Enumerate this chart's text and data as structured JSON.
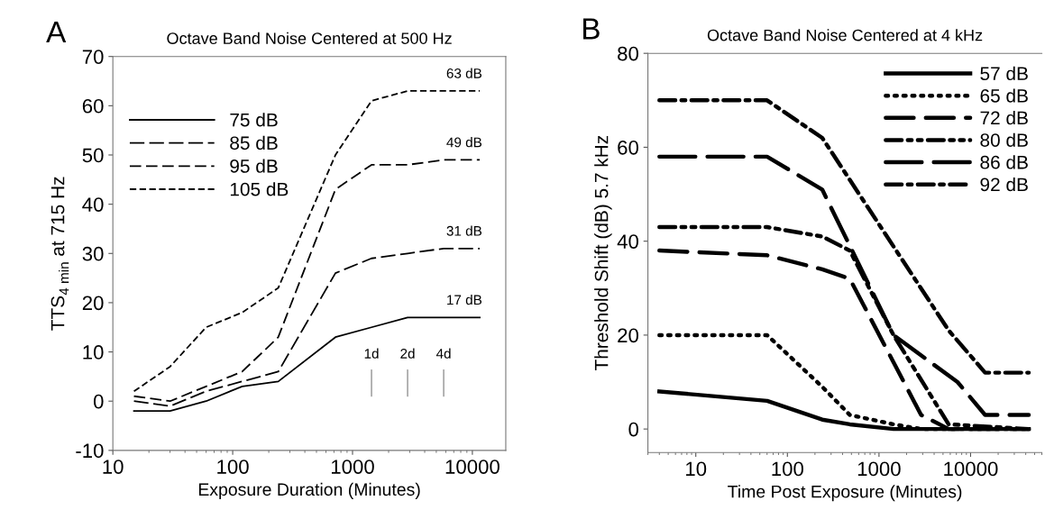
{
  "chart_data": [
    {
      "type": "line",
      "title": "Octave Band Noise Centered at 500 Hz",
      "xlabel": "Exposure Duration (Minutes)",
      "ylabel": "TTS$_{4 min}$ at 715 Hz",
      "x": [
        15,
        30,
        60,
        120,
        240,
        720,
        1440,
        2880,
        5760,
        11520
      ],
      "series": [
        {
          "name": "75 dB",
          "color": "#000000",
          "line_style": "solid",
          "values": [
            -2,
            -2,
            0,
            3,
            4,
            13,
            15,
            17,
            17,
            17
          ],
          "value_labels": [
            null,
            null,
            null,
            null,
            null,
            null,
            null,
            null,
            null,
            "17 dB"
          ]
        },
        {
          "name": "85 dB",
          "color": "#000000",
          "line_style": "long dashed",
          "values": [
            0,
            -1,
            2,
            4,
            6,
            26,
            29,
            30,
            31,
            31
          ],
          "value_labels": [
            null,
            null,
            null,
            null,
            null,
            null,
            null,
            null,
            null,
            "31 dB"
          ]
        },
        {
          "name": "95 dB",
          "color": "#000000",
          "line_style": "dashed",
          "values": [
            1,
            0,
            3,
            6,
            13,
            43,
            48,
            48,
            49,
            49
          ],
          "value_labels": [
            null,
            null,
            null,
            null,
            null,
            null,
            null,
            null,
            null,
            "49 dB"
          ]
        },
        {
          "name": "105 dB",
          "color": "#000000",
          "line_style": "short dashed",
          "values": [
            2,
            7,
            15,
            18,
            23,
            50,
            61,
            63,
            63,
            63
          ],
          "value_labels": [
            null,
            null,
            null,
            null,
            null,
            null,
            null,
            null,
            null,
            "63 dB"
          ]
        }
      ],
      "log": "x",
      "xlim": [
        10,
        19000
      ],
      "xticks": [
        10,
        100,
        1000,
        10000
      ],
      "ylim": [
        -10,
        70
      ],
      "yticks": [
        -10,
        0,
        10,
        20,
        30,
        40,
        50,
        60,
        70
      ],
      "legend": "upper left",
      "grid": false,
      "annotations": [
        "A",
        "1d",
        "2d",
        "4d"
      ]
    },
    {
      "type": "line",
      "title": "Octave Band Noise Centered at 4 kHz",
      "xlabel": "Time Post Exposure (Minutes)",
      "ylabel": "Threshold Shift (dB) 5.7 kHz",
      "series": [
        {
          "name": "57 dB",
          "color": "#000000",
          "line_style": "solid",
          "x": [
            4,
            60,
            240,
            480,
            1440,
            43200
          ],
          "values": [
            8,
            6,
            2,
            1,
            0,
            0
          ]
        },
        {
          "name": "65 dB",
          "color": "#000000",
          "line_style": "dotted",
          "x": [
            4,
            60,
            240,
            480,
            1440,
            2880,
            43200
          ],
          "values": [
            20,
            20,
            9,
            3,
            1,
            0,
            0
          ]
        },
        {
          "name": "72 dB",
          "color": "#000000",
          "line_style": "dashed",
          "x": [
            4,
            60,
            240,
            480,
            2880,
            5760,
            43200
          ],
          "values": [
            38,
            37,
            34,
            32,
            3,
            0,
            0
          ]
        },
        {
          "name": "80 dB",
          "color": "#000000",
          "line_style": "dashdotdot",
          "x": [
            4,
            60,
            240,
            480,
            1440,
            5760,
            43200
          ],
          "values": [
            43,
            43,
            41,
            38,
            20,
            1,
            0
          ]
        },
        {
          "name": "86 dB",
          "color": "#000000",
          "line_style": "long dashed",
          "x": [
            4,
            60,
            240,
            1440,
            7200,
            14400,
            43200
          ],
          "values": [
            58,
            58,
            51,
            20,
            10,
            3,
            3
          ]
        },
        {
          "name": "92 dB",
          "color": "#000000",
          "line_style": "dashdot",
          "x": [
            4,
            60,
            240,
            5760,
            14400,
            43200
          ],
          "values": [
            70,
            70,
            62,
            21,
            12,
            12
          ]
        }
      ],
      "log": "x",
      "xlim": [
        3,
        60000
      ],
      "xticks": [
        10,
        100,
        1000,
        10000
      ],
      "ylim": [
        -5,
        80
      ],
      "yticks": [
        0,
        20,
        40,
        60,
        80
      ],
      "legend": "upper right",
      "grid": false,
      "annotations": [
        "B"
      ]
    }
  ]
}
